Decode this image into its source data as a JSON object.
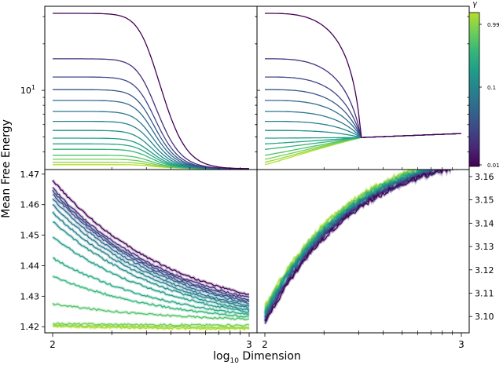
{
  "figure": {
    "ylabel": "Mean Free Energy",
    "xlabel_prefix": "log",
    "xlabel_sub": "10",
    "xlabel_suffix": " Dimension",
    "colorbar_label": "γ",
    "colorbar_ticks": [
      "0.99",
      "0.1",
      "0.01"
    ],
    "colormap": [
      "#440154",
      "#482878",
      "#3e4989",
      "#31688e",
      "#26828e",
      "#1f9e89",
      "#35b779",
      "#6ece58",
      "#b5de2b"
    ]
  },
  "chart_data": [
    {
      "type": "line",
      "panel": "top-left",
      "description_scale": "log-y",
      "xlim": [
        2,
        3
      ],
      "ylim": [
        3.07,
        35
      ],
      "yscale": "log",
      "ytick_labels": [
        {
          "value": 10,
          "base": "10",
          "exp": "1"
        }
      ],
      "xtick_labels": [],
      "grid": false,
      "start_values": [
        31.5,
        16.0,
        12.2,
        10.1,
        8.6,
        7.3,
        6.3,
        5.5,
        4.9,
        4.5,
        4.15,
        3.8,
        3.58,
        3.42,
        3.3
      ],
      "end_value": 3.1,
      "gamma_values": [
        0.01,
        0.02,
        0.03,
        0.04,
        0.06,
        0.08,
        0.1,
        0.13,
        0.17,
        0.22,
        0.3,
        0.42,
        0.58,
        0.78,
        0.99
      ]
    },
    {
      "type": "line",
      "panel": "top-right",
      "xlim": [
        2,
        3
      ],
      "ylim": [
        3.07,
        35
      ],
      "yscale": "log",
      "ytick_labels": [],
      "xtick_labels": [],
      "grid": false,
      "start_values": [
        31.5,
        16.0,
        12.2,
        10.1,
        8.6,
        7.3,
        6.3,
        5.5,
        4.9,
        4.5,
        4.15,
        3.8,
        3.58,
        3.42,
        3.3
      ],
      "crossover_x": 2.49,
      "crossover_value": 4.95,
      "end_value": 5.25,
      "gamma_values": [
        0.01,
        0.02,
        0.03,
        0.04,
        0.06,
        0.08,
        0.1,
        0.13,
        0.17,
        0.22,
        0.3,
        0.42,
        0.58,
        0.78,
        0.99
      ]
    },
    {
      "type": "line",
      "panel": "bottom-left",
      "xlim": [
        2,
        3
      ],
      "ylim": [
        1.418,
        1.4715
      ],
      "ytick_labels": [
        "1.47",
        "1.46",
        "1.45",
        "1.44",
        "1.43",
        "1.42"
      ],
      "yticks": [
        1.47,
        1.46,
        1.45,
        1.44,
        1.43,
        1.42
      ],
      "xtick_labels": [
        "2",
        "3"
      ],
      "xticks": [
        2,
        3
      ],
      "grid": false,
      "start_values": [
        1.468,
        1.4655,
        1.4645,
        1.4635,
        1.462,
        1.46,
        1.4575,
        1.4545,
        1.4495,
        1.4425,
        1.4365,
        1.4275,
        1.421,
        1.4205,
        1.4202
      ],
      "end_values": [
        1.4305,
        1.4295,
        1.4288,
        1.4282,
        1.4276,
        1.4268,
        1.4262,
        1.4255,
        1.4248,
        1.424,
        1.4232,
        1.4225,
        1.4205,
        1.4198,
        1.4193
      ],
      "gamma_values": [
        0.01,
        0.02,
        0.03,
        0.04,
        0.06,
        0.08,
        0.1,
        0.13,
        0.17,
        0.22,
        0.3,
        0.42,
        0.58,
        0.78,
        0.99
      ]
    },
    {
      "type": "line",
      "panel": "bottom-right",
      "xlim": [
        2,
        3
      ],
      "ylim": [
        3.093,
        3.163
      ],
      "ytick_labels": [
        "3.16",
        "3.15",
        "3.14",
        "3.13",
        "3.12",
        "3.11",
        "3.10"
      ],
      "yticks": [
        3.16,
        3.15,
        3.14,
        3.13,
        3.12,
        3.11,
        3.1
      ],
      "xtick_labels": [
        "2",
        "3"
      ],
      "xticks": [
        2,
        3
      ],
      "grid": false,
      "start_values": [
        3.097,
        3.0975,
        3.098,
        3.0985,
        3.099,
        3.0995,
        3.1,
        3.1005,
        3.101,
        3.1015,
        3.102,
        3.1025,
        3.103,
        3.1035,
        3.104
      ],
      "end_values": [
        3.1645,
        3.1648,
        3.165,
        3.1652,
        3.1655,
        3.1658,
        3.166,
        3.1663,
        3.1666,
        3.167,
        3.1673,
        3.1676,
        3.168,
        3.1683,
        3.1686
      ],
      "gamma_values": [
        0.01,
        0.02,
        0.03,
        0.04,
        0.06,
        0.08,
        0.1,
        0.13,
        0.17,
        0.22,
        0.3,
        0.42,
        0.58,
        0.78,
        0.99
      ]
    }
  ]
}
